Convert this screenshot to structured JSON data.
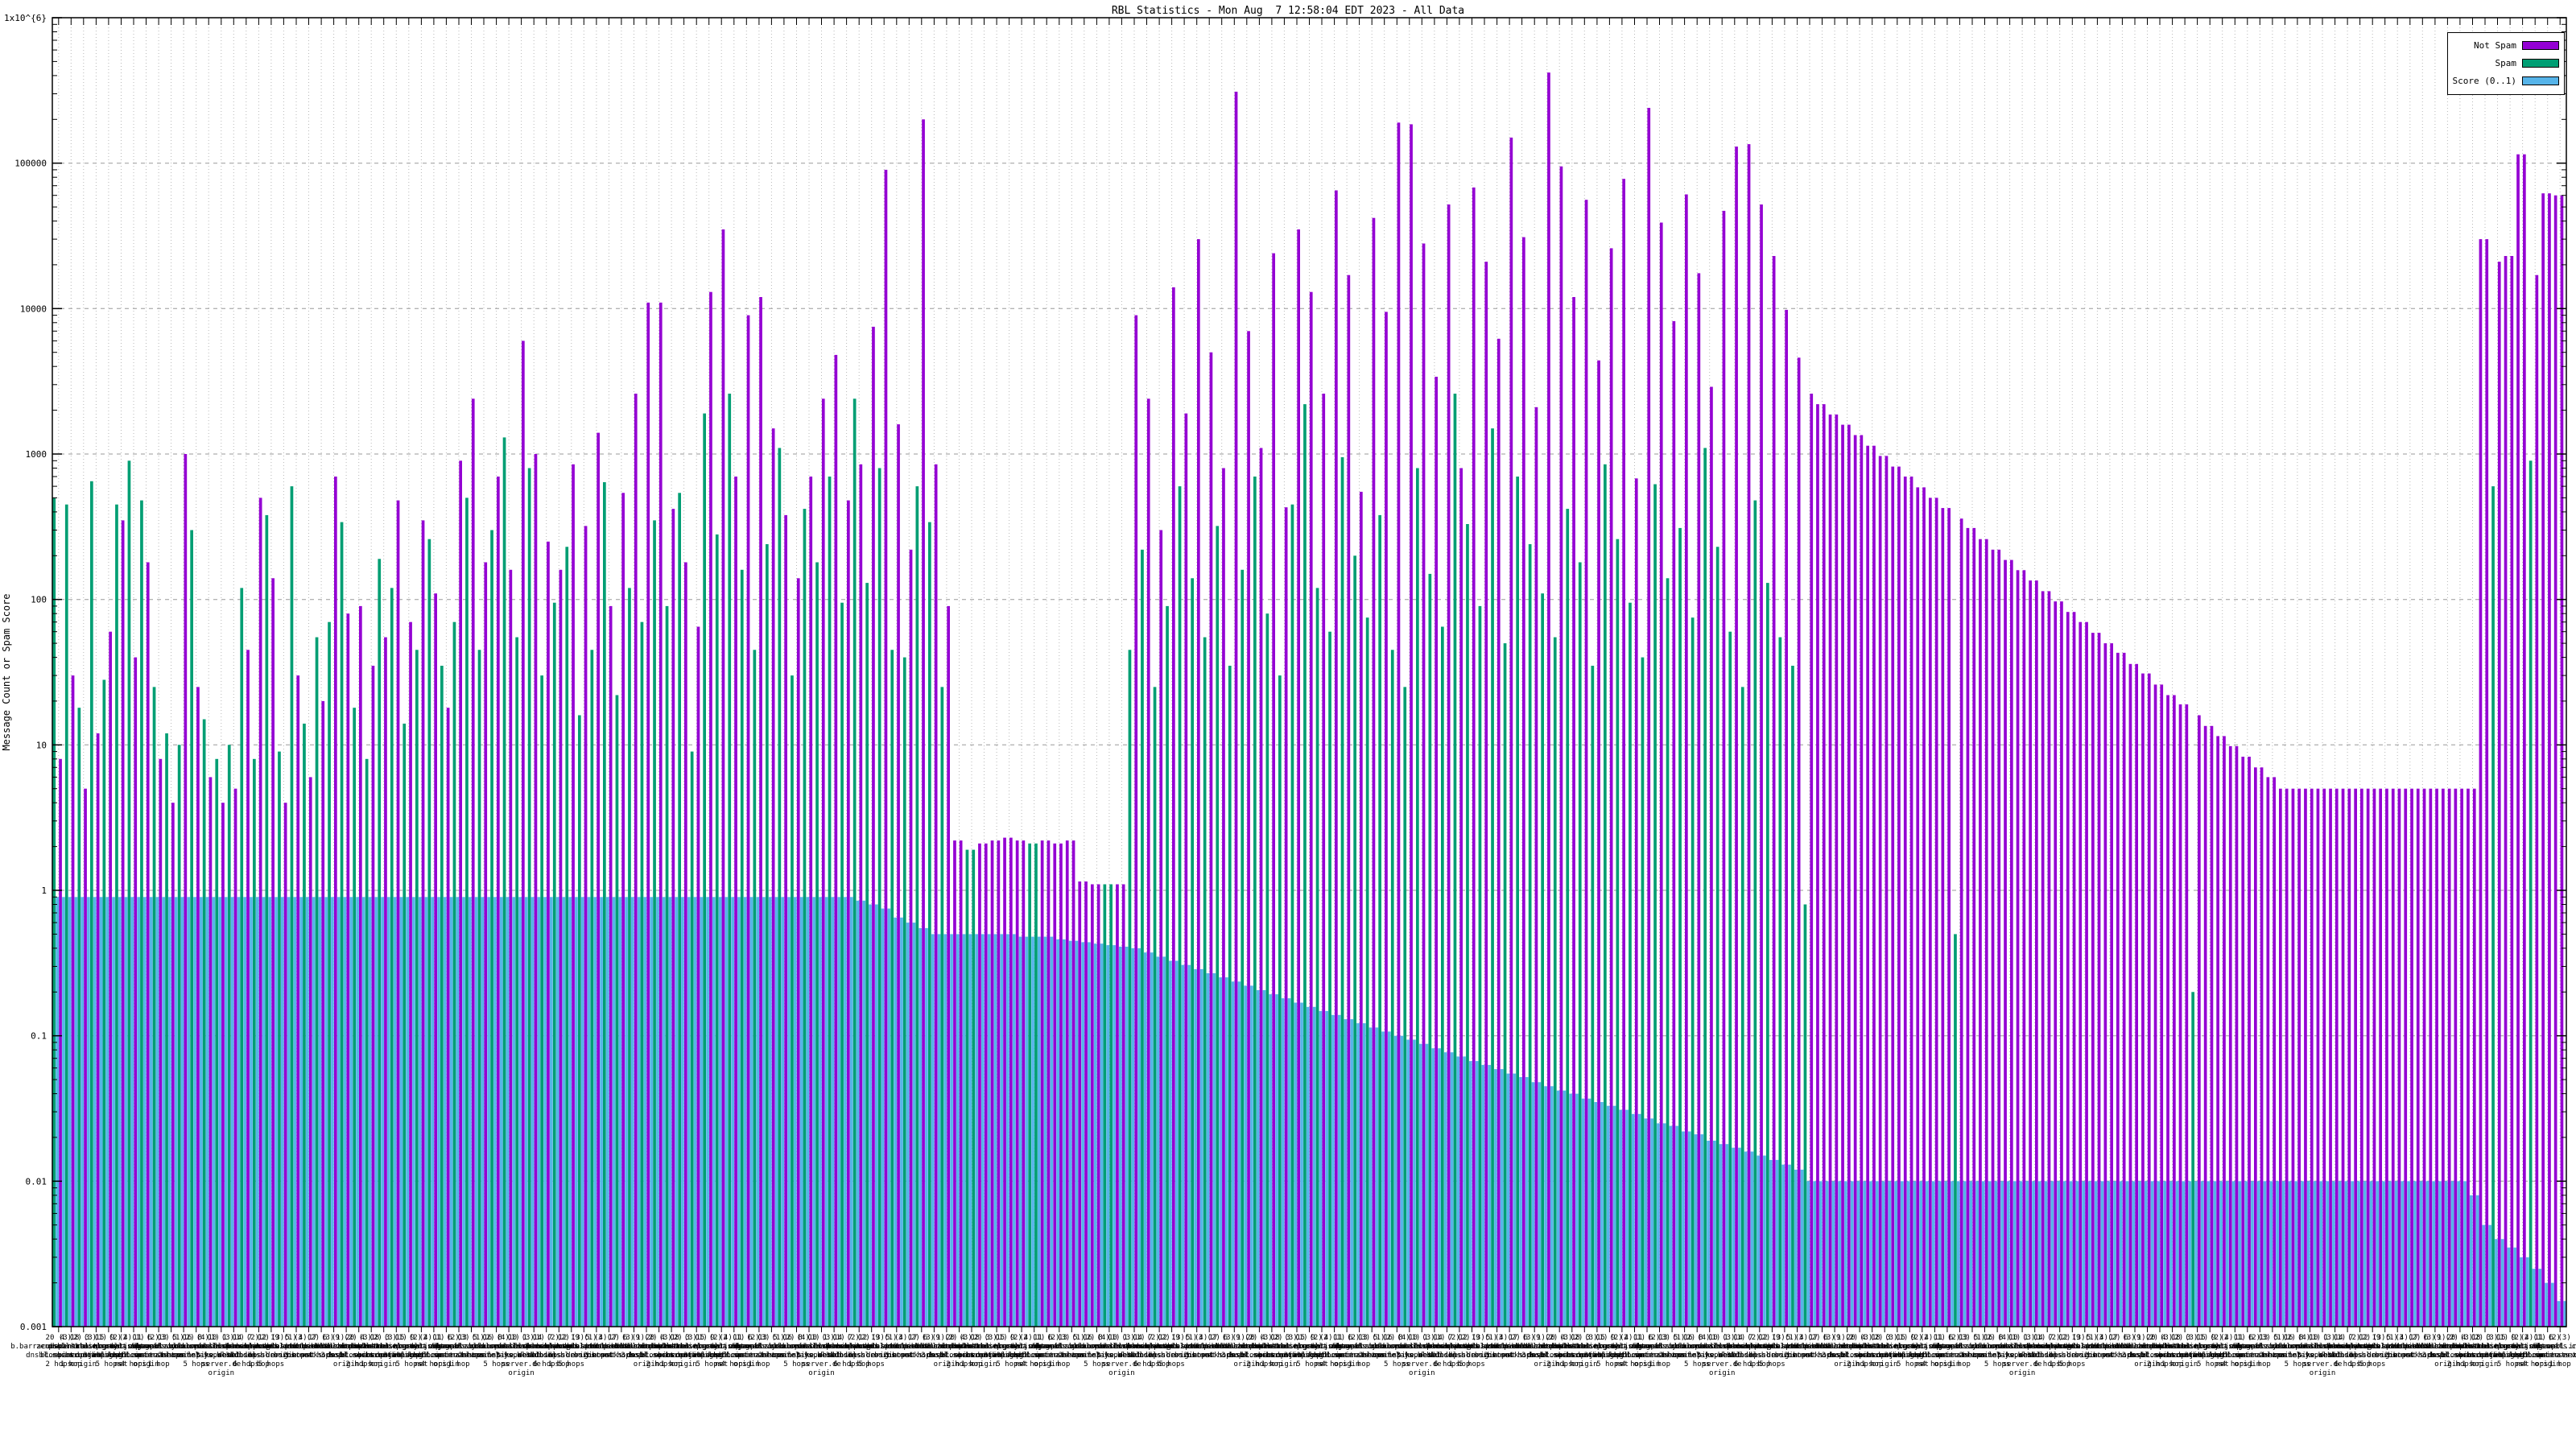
{
  "title": "RBL Statistics - Mon Aug  7 12:58:04 EDT 2023 - All Data",
  "colors": {
    "not_spam": "#9400d3",
    "spam": "#009e73",
    "score": "#56b4e9",
    "grid_major": "#9a9a9a",
    "grid_minor": "#b8b8b8",
    "frame": "#000000"
  },
  "legend": {
    "entries": [
      {
        "label": "Not Spam",
        "color": "#9400d3"
      },
      {
        "label": "Spam",
        "color": "#009e73"
      },
      {
        "label": "Score (0..1)",
        "color": "#56b4e9"
      }
    ]
  },
  "chart_data": {
    "type": "bar",
    "title": "RBL Statistics - Mon Aug  7 12:58:04 EDT 2023 - All Data",
    "xlabel": "",
    "ylabel": "Message Count or Spam Score",
    "y_scale": "log",
    "ylim": [
      0.001,
      1000000
    ],
    "grid": true,
    "legend_position": "top-right",
    "y_tick_labels": [
      "1x10^{6}",
      "100000",
      "10000",
      "1000",
      "100",
      "10",
      "1",
      "0.1",
      "0.01",
      "0.001"
    ],
    "series": [
      {
        "name": "Not Spam",
        "color": "#9400d3",
        "values": [
          8,
          30,
          5,
          12,
          60,
          350,
          40,
          180,
          8,
          4,
          1000,
          25,
          6,
          4,
          5,
          45,
          500,
          140,
          4,
          30,
          6,
          20,
          700,
          80,
          90,
          35,
          55,
          480,
          70,
          350,
          110,
          18,
          900,
          2400,
          180,
          700,
          160,
          6000,
          1000,
          250,
          160,
          850,
          320,
          1400,
          90,
          540,
          2600,
          11000,
          11000,
          420,
          180,
          65,
          13000,
          35000,
          700,
          9000,
          12000,
          1500,
          380,
          140,
          700,
          2400,
          4800,
          480,
          850,
          7500,
          90000,
          1600,
          220,
          200000,
          850,
          90,
          2.2,
          0,
          2.1,
          2.2,
          2.3,
          2.2,
          0,
          2.2,
          2.1,
          2.2,
          1.15,
          1.1,
          0,
          1.1,
          9000,
          2400,
          300,
          14000,
          1900,
          30000,
          5000,
          800,
          310000,
          7000,
          1100,
          24000,
          430,
          35000,
          13000,
          2600,
          65000,
          17000,
          550,
          42000,
          9500,
          190000,
          185000,
          28000,
          3400,
          52000,
          800,
          68000,
          21000,
          6200,
          150000,
          31000,
          2100,
          420000,
          95000,
          12000,
          56000,
          4400,
          26000,
          78000,
          680,
          240000,
          39000,
          8200,
          61000,
          17500,
          2900,
          47000,
          130000,
          135000,
          52000,
          23000,
          9800,
          4600,
          2600,
          2200,
          1870,
          1590,
          1350,
          1140,
          970,
          820,
          700,
          590,
          500,
          425,
          360,
          310,
          260,
          220,
          187,
          159,
          135,
          114,
          97,
          82,
          70,
          59,
          50,
          43,
          36,
          31,
          26,
          22,
          19,
          16,
          13.5,
          11.5,
          9.8,
          8.3,
          7,
          6,
          5,
          5,
          5,
          5,
          5,
          5,
          5,
          5,
          5,
          5,
          5,
          5,
          5,
          5,
          5,
          5,
          30000,
          21000,
          23000,
          115000,
          17000,
          62000,
          60000
        ]
      },
      {
        "name": "Spam",
        "color": "#009e73",
        "values": [
          500,
          450,
          18,
          650,
          28,
          450,
          900,
          480,
          25,
          12,
          10,
          300,
          15,
          8,
          10,
          120,
          8,
          380,
          9,
          600,
          14,
          55,
          70,
          340,
          18,
          8,
          190,
          120,
          14,
          45,
          260,
          35,
          70,
          500,
          45,
          300,
          1300,
          55,
          800,
          30,
          95,
          230,
          16,
          45,
          640,
          22,
          120,
          70,
          350,
          90,
          540,
          9,
          1900,
          280,
          2600,
          160,
          45,
          240,
          1100,
          30,
          420,
          180,
          700,
          95,
          2400,
          130,
          800,
          45,
          40,
          600,
          340,
          25,
          0,
          1.9,
          0,
          0,
          0,
          0,
          2.1,
          0,
          0,
          0,
          0,
          0,
          1.1,
          0,
          45,
          220,
          25,
          90,
          600,
          140,
          55,
          320,
          35,
          160,
          700,
          80,
          30,
          450,
          2200,
          120,
          60,
          950,
          200,
          75,
          380,
          45,
          25,
          800,
          150,
          65,
          2600,
          330,
          90,
          1500,
          50,
          700,
          240,
          110,
          55,
          420,
          180,
          35,
          850,
          260,
          95,
          40,
          620,
          140,
          310,
          75,
          1100,
          230,
          60,
          25,
          480,
          130,
          55,
          35,
          0.8,
          0,
          0,
          0,
          0,
          0,
          0,
          0,
          0,
          0,
          0,
          0,
          0.5,
          0,
          0,
          0,
          0,
          0,
          0,
          0,
          0,
          0,
          0,
          0,
          0,
          0,
          0,
          0,
          0,
          0,
          0,
          0.2,
          0,
          0,
          0,
          0,
          0,
          0,
          0,
          0,
          0,
          0,
          0,
          0,
          0,
          0,
          0,
          0,
          0,
          0,
          0,
          0,
          0,
          0,
          0,
          600,
          0,
          0,
          900,
          0,
          0
        ]
      },
      {
        "name": "Score (0..1)",
        "color": "#56b4e9",
        "values": [
          0.9,
          0.9,
          0.9,
          0.9,
          0.9,
          0.9,
          0.9,
          0.9,
          0.9,
          0.9,
          0.9,
          0.9,
          0.9,
          0.9,
          0.9,
          0.9,
          0.9,
          0.9,
          0.9,
          0.9,
          0.9,
          0.9,
          0.9,
          0.9,
          0.9,
          0.9,
          0.9,
          0.9,
          0.9,
          0.9,
          0.9,
          0.9,
          0.9,
          0.9,
          0.9,
          0.9,
          0.9,
          0.9,
          0.9,
          0.9,
          0.9,
          0.9,
          0.9,
          0.9,
          0.9,
          0.9,
          0.9,
          0.9,
          0.9,
          0.9,
          0.9,
          0.9,
          0.9,
          0.9,
          0.9,
          0.9,
          0.9,
          0.9,
          0.9,
          0.9,
          0.9,
          0.9,
          0.9,
          0.9,
          0.85,
          0.8,
          0.75,
          0.65,
          0.6,
          0.55,
          0.5,
          0.5,
          0.5,
          0.5,
          0.5,
          0.5,
          0.5,
          0.48,
          0.48,
          0.48,
          0.46,
          0.45,
          0.44,
          0.43,
          0.42,
          0.41,
          0.4,
          0.374,
          0.35,
          0.328,
          0.307,
          0.287,
          0.269,
          0.252,
          0.236,
          0.221,
          0.206,
          0.193,
          0.181,
          0.169,
          0.158,
          0.148,
          0.139,
          0.13,
          0.122,
          0.114,
          0.107,
          0.1,
          0.094,
          0.088,
          0.082,
          0.077,
          0.072,
          0.067,
          0.063,
          0.059,
          0.055,
          0.052,
          0.048,
          0.045,
          0.042,
          0.04,
          0.037,
          0.035,
          0.033,
          0.031,
          0.029,
          0.027,
          0.025,
          0.024,
          0.022,
          0.021,
          0.019,
          0.018,
          0.017,
          0.016,
          0.015,
          0.014,
          0.013,
          0.012,
          0.01,
          0.01,
          0.01,
          0.01,
          0.01,
          0.01,
          0.01,
          0.01,
          0.01,
          0.01,
          0.01,
          0.01,
          0.01,
          0.01,
          0.01,
          0.01,
          0.01,
          0.01,
          0.01,
          0.01,
          0.01,
          0.01,
          0.01,
          0.01,
          0.01,
          0.01,
          0.01,
          0.01,
          0.01,
          0.01,
          0.01,
          0.01,
          0.01,
          0.01,
          0.01,
          0.01,
          0.01,
          0.01,
          0.01,
          0.01,
          0.01,
          0.01,
          0.01,
          0.01,
          0.01,
          0.01,
          0.01,
          0.01,
          0.01,
          0.01,
          0.01,
          0.01,
          0.01,
          0.008,
          0.005,
          0.004,
          0.0035,
          0.003,
          0.0025,
          0.002,
          0.0015
        ]
      }
    ],
    "x_tick_labels_illegible_sample": [
      "20 (3)\nb.barracudacentral.org\ndnsbl.sorbs.net\n2 hops",
      "4 (2)\nzen.spamhaus.org\nbl.spamcop.net\n1 hop",
      "18 (3)\npsbl.surriel.com\ncombined.njabl.org\norigin",
      "3 (1)\ndnsbl-1.uceprotect.net\n3 hops",
      "15 (2)\ncbl.abuseat.org\ntruncate.gbudb.net\n5 hops",
      "9 (4)\nhostkarma.junkemail\nfilter.com\nnet",
      "2 (1)\nall.s5h.net\nix.dnsbl.manitu.net\n4 hops",
      "11 (2)\ndyna.spamrats.com\nnoptr.spamrats.com\norigin",
      "6 (3)\ndb.wpbl.info\nrbl.interserver.net\n1 hop",
      "13 (1)\nbogons.cymru.com\n2 hops",
      "5 (2)\nspam.dnsbl.anonmails.de\nnet",
      "16 (4)\nz.mailspike.net\nbl.mailspike.net\n5 hops",
      "8 (1)\nubl.unsubscore.com\n3 hops",
      "10 (3)\nkorea.services.net\nrelays.bl.kunden\nserver.de\norigin",
      "1 (1)\ndnsbl.dronebl.org\nnet",
      "14 (2)\nbl.blocklist.de\ndnsbl.inps.de\n6 hops",
      "7 (2)\nspam.spamrats.com\nweb.dnsbl.sorbs.net\n1 hop",
      "12 (3)\nzombie.dnsbl.sorbs.net\ndul.dnsbl.sorbs.net\n5 hops",
      "19 (1)\nsmtp.dnsbl.sorbs.net\norigin",
      "5 (4)\nnew.spam.dnsbl.sorbs.net\n2 hops",
      "3 (2)\nrecent.spam.dnsbl.sorbs.net\nnet",
      "17 (3)\nescalations.dnsbl.sorbs.net\n4 hops",
      "6 (1)\nhttp.dnsbl.sorbs.net\n3 hops",
      "9 (2)\nmisc.dnsbl.sorbs.net\nsocks.dnsbl.sorbs.net\norigin"
    ],
    "x_sub_label_fragments": [
      "6 hops",
      "5 hops",
      "net",
      "origin",
      "1 hop",
      "2 hops",
      "3 hops",
      "4 hops"
    ]
  },
  "axes": {
    "ylabel": "Message Count or Spam Score"
  }
}
